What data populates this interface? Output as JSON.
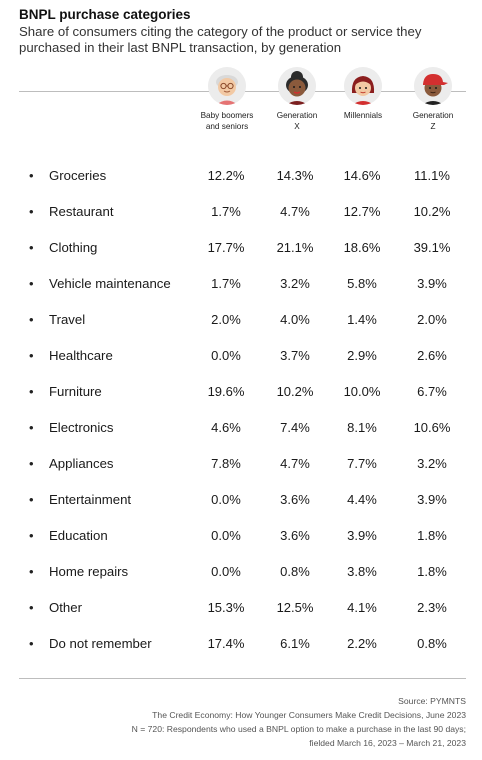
{
  "title": "BNPL purchase categories",
  "subtitle": "Share of consumers citing the category of the product or service they purchased in their last BNPL transaction, by generation",
  "generations": [
    {
      "line1": "Baby boomers",
      "line2": "and seniors",
      "icon": "senior-avatar-icon"
    },
    {
      "line1": "Generation",
      "line2": "X",
      "icon": "gen-x-avatar-icon"
    },
    {
      "line1": "Millennials",
      "line2": "",
      "icon": "millennial-avatar-icon"
    },
    {
      "line1": "Generation",
      "line2": "Z",
      "icon": "gen-z-avatar-icon"
    }
  ],
  "colors": {
    "rule": "#bdbdbd",
    "avatar_bg": "#ececec",
    "skin_light": "#f2c9a4",
    "skin_dark": "#8a5a3c",
    "hair_gray": "#d9d9d9",
    "hair_black": "#2b2b2b",
    "accent_red": "#d32f2f"
  },
  "bullet": "•",
  "chart_data": {
    "type": "table",
    "title": "BNPL purchase categories",
    "columns": [
      "Baby boomers and seniors",
      "Generation X",
      "Millennials",
      "Generation Z"
    ],
    "rows": [
      {
        "category": "Groceries",
        "values": [
          "12.2%",
          "14.3%",
          "14.6%",
          "11.1%"
        ]
      },
      {
        "category": "Restaurant",
        "values": [
          "1.7%",
          "4.7%",
          "12.7%",
          "10.2%"
        ]
      },
      {
        "category": "Clothing",
        "values": [
          "17.7%",
          "21.1%",
          "18.6%",
          "39.1%"
        ]
      },
      {
        "category": "Vehicle maintenance",
        "values": [
          "1.7%",
          "3.2%",
          "5.8%",
          "3.9%"
        ]
      },
      {
        "category": "Travel",
        "values": [
          "2.0%",
          "4.0%",
          "1.4%",
          "2.0%"
        ]
      },
      {
        "category": "Healthcare",
        "values": [
          "0.0%",
          "3.7%",
          "2.9%",
          "2.6%"
        ]
      },
      {
        "category": "Furniture",
        "values": [
          "19.6%",
          "10.2%",
          "10.0%",
          "6.7%"
        ]
      },
      {
        "category": "Electronics",
        "values": [
          "4.6%",
          "7.4%",
          "8.1%",
          "10.6%"
        ]
      },
      {
        "category": "Appliances",
        "values": [
          "7.8%",
          "4.7%",
          "7.7%",
          "3.2%"
        ]
      },
      {
        "category": "Entertainment",
        "values": [
          "0.0%",
          "3.6%",
          "4.4%",
          "3.9%"
        ]
      },
      {
        "category": "Education",
        "values": [
          "0.0%",
          "3.6%",
          "3.9%",
          "1.8%"
        ]
      },
      {
        "category": "Home repairs",
        "values": [
          "0.0%",
          "0.8%",
          "3.8%",
          "1.8%"
        ]
      },
      {
        "category": "Other",
        "values": [
          "15.3%",
          "12.5%",
          "4.1%",
          "2.3%"
        ]
      },
      {
        "category": "Do not remember",
        "values": [
          "17.4%",
          "6.1%",
          "2.2%",
          "0.8%"
        ]
      }
    ]
  },
  "footer": {
    "source": "Source: PYMNTS",
    "report": "The Credit Economy: How Younger Consumers Make Credit Decisions, June 2023",
    "method1": "N = 720: Respondents who used a BNPL option to make a purchase in the last 90 days;",
    "method2": "fielded March 16, 2023 – March 21, 2023"
  }
}
